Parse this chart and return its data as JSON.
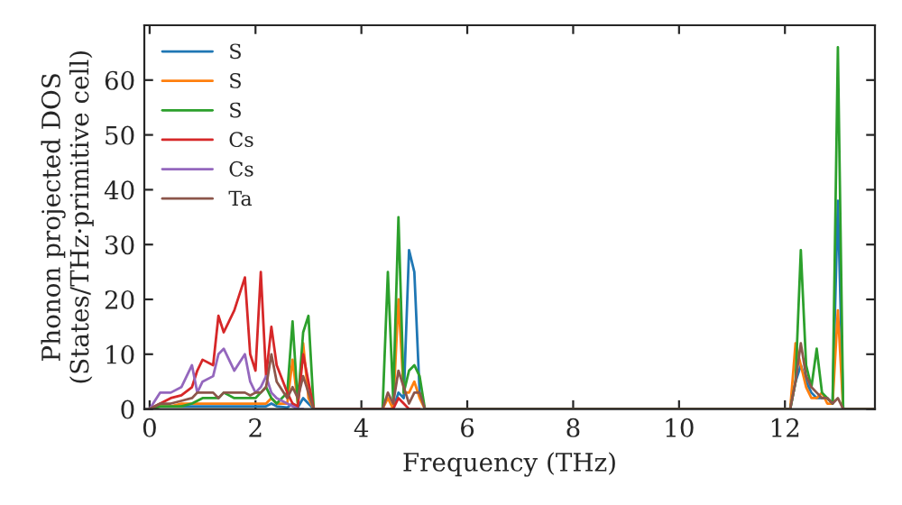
{
  "chart_data": {
    "type": "line",
    "xlabel": "Frequency (THz)",
    "ylabel": "Phonon projected DOS\n(States/THz·primitive cell)",
    "x": [
      0,
      0.2,
      0.4,
      0.6,
      0.8,
      0.9,
      1.0,
      1.2,
      1.3,
      1.4,
      1.6,
      1.8,
      1.9,
      2.0,
      2.1,
      2.2,
      2.3,
      2.4,
      2.6,
      2.7,
      2.8,
      2.9,
      3.0,
      3.1,
      4.4,
      4.5,
      4.6,
      4.7,
      4.8,
      4.9,
      5.0,
      5.1,
      5.2,
      12.1,
      12.2,
      12.3,
      12.4,
      12.5,
      12.6,
      12.7,
      12.8,
      12.9,
      13.0,
      13.1,
      13.7
    ],
    "series": [
      {
        "name": "S",
        "color": "#1f77b4",
        "values": [
          null,
          null,
          0.5,
          0.5,
          0.5,
          0.5,
          0.5,
          0.5,
          0.5,
          0.5,
          0.5,
          0.5,
          0.5,
          0.5,
          0.5,
          0.5,
          1,
          0.5,
          0.3,
          1,
          0.3,
          2,
          1,
          0,
          0,
          0,
          0,
          3,
          2,
          29,
          25,
          3,
          0,
          0,
          5,
          8,
          5,
          3,
          2,
          2,
          2,
          1,
          38,
          0,
          0
        ]
      },
      {
        "name": "S",
        "color": "#ff7f0e",
        "values": [
          0,
          0.5,
          0.5,
          1,
          1,
          1,
          1,
          1,
          1,
          1,
          1,
          1,
          1,
          1,
          1,
          1,
          2,
          1,
          1,
          9,
          1,
          12,
          2,
          0,
          0,
          2,
          0,
          20,
          3,
          3,
          5,
          2,
          0,
          0,
          12,
          8,
          4,
          2,
          2,
          3,
          1,
          1,
          18,
          0,
          0
        ]
      },
      {
        "name": "S",
        "color": "#2ca02c",
        "values": [
          0,
          0.5,
          0.5,
          0.5,
          1,
          1.5,
          2,
          2,
          2,
          3,
          2,
          2,
          2,
          2,
          3,
          4,
          2,
          1,
          3,
          16,
          1,
          14,
          17,
          0,
          0,
          25,
          2,
          35,
          3,
          7,
          8,
          6,
          0,
          0,
          5,
          29,
          8,
          4,
          11,
          3,
          2,
          1,
          66,
          0,
          0
        ]
      },
      {
        "name": "Cs",
        "color": "#d62728",
        "values": [
          0,
          1,
          2,
          2.5,
          4,
          7,
          9,
          8,
          17,
          14,
          18,
          24,
          10,
          7,
          25,
          6,
          15,
          8,
          3,
          1,
          0.5,
          10,
          5,
          0,
          0,
          0,
          0,
          2,
          1,
          0,
          0,
          0,
          null,
          null,
          null,
          null,
          null,
          null,
          null,
          null,
          null,
          null,
          null,
          null,
          null
        ]
      },
      {
        "name": "Cs",
        "color": "#9467bd",
        "values": [
          0,
          3,
          3,
          4,
          8,
          3,
          5,
          6,
          10,
          11,
          7,
          10,
          5,
          3,
          4,
          6,
          3,
          2,
          1,
          0.5,
          0,
          0,
          null,
          null,
          null,
          null,
          null,
          null,
          null,
          null,
          null,
          null,
          null,
          null,
          null,
          null,
          null,
          null,
          null,
          null,
          null,
          null,
          null,
          null,
          null
        ]
      },
      {
        "name": "Ta",
        "color": "#8c564b",
        "values": [
          0,
          1,
          1,
          1.5,
          2,
          3,
          3,
          3,
          2,
          3,
          3,
          3,
          2.5,
          3,
          3,
          4,
          10,
          5,
          2,
          4,
          2,
          6,
          3,
          0,
          0,
          3,
          1,
          7,
          4,
          1,
          3,
          3,
          0,
          0,
          5,
          12,
          6,
          4,
          3,
          2,
          2,
          1,
          2,
          0,
          0
        ]
      }
    ],
    "xlim": [
      -0.1,
      13.7
    ],
    "ylim": [
      0,
      70
    ],
    "xticks": [
      0,
      2,
      4,
      6,
      8,
      10,
      12
    ],
    "yticks": [
      0,
      10,
      20,
      30,
      40,
      50,
      60
    ],
    "legend": "top left",
    "grid": false
  }
}
